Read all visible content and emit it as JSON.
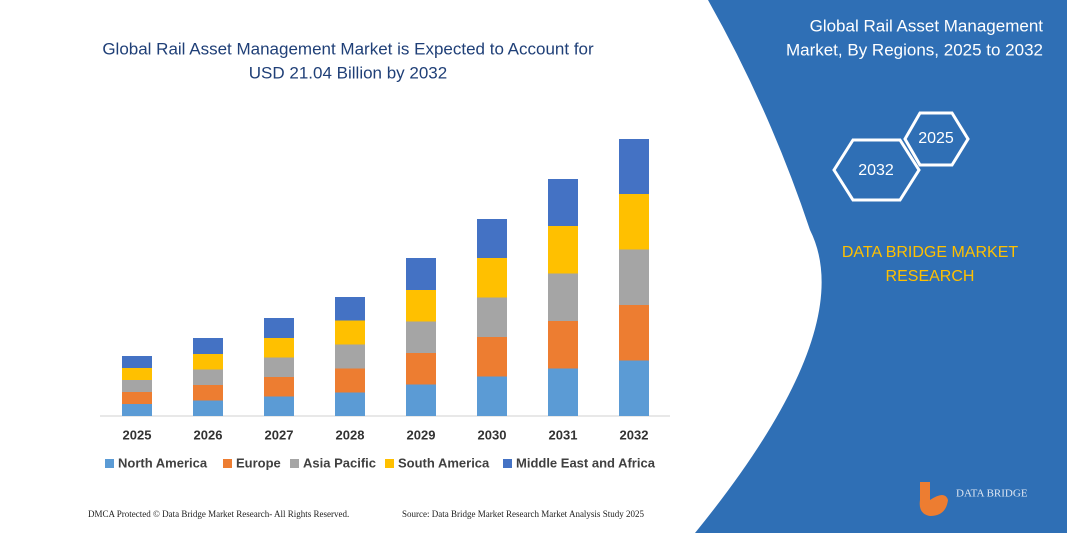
{
  "chart_data": {
    "type": "stacked-bar",
    "title": [
      "Global Rail Asset Management Market is Expected to Account for",
      "USD 21.04 Billion by 2032"
    ],
    "categories": [
      "2025",
      "2026",
      "2027",
      "2028",
      "2029",
      "2030",
      "2031",
      "2032"
    ],
    "series": [
      {
        "name": "North America",
        "color": "#5b9bd5",
        "values": [
          12,
          15.5,
          19.5,
          23.5,
          31.5,
          39.5,
          47.5,
          55.5
        ]
      },
      {
        "name": "Europe",
        "color": "#ed7d31",
        "values": [
          12,
          15.5,
          19.5,
          24,
          31.5,
          39.5,
          47.5,
          55.5
        ]
      },
      {
        "name": "Asia Pacific",
        "color": "#a5a5a5",
        "values": [
          12,
          15.5,
          19.5,
          24,
          31.5,
          39.5,
          47.5,
          55.5
        ]
      },
      {
        "name": "South America",
        "color": "#ffc000",
        "values": [
          12,
          15.5,
          19.5,
          24,
          31.5,
          39.5,
          47.5,
          55.5
        ]
      },
      {
        "name": "Middle East and Africa",
        "color": "#4472c4",
        "values": [
          12,
          16,
          20,
          23.5,
          32,
          39,
          47,
          55
        ]
      }
    ]
  },
  "panel": {
    "title": [
      "Global Rail Asset Management",
      "Market, By Regions, 2025 to 2032"
    ],
    "hexagons": [
      "2025",
      "2032"
    ],
    "brand": [
      "DATA BRIDGE MARKET",
      "RESEARCH"
    ]
  },
  "footer": {
    "left": "DMCA Protected © Data Bridge Market Research-  All Rights Reserved.",
    "right": "Source: Data Bridge Market Research  Market Analysis Study 2025",
    "logo": "DATA BRIDGE"
  }
}
